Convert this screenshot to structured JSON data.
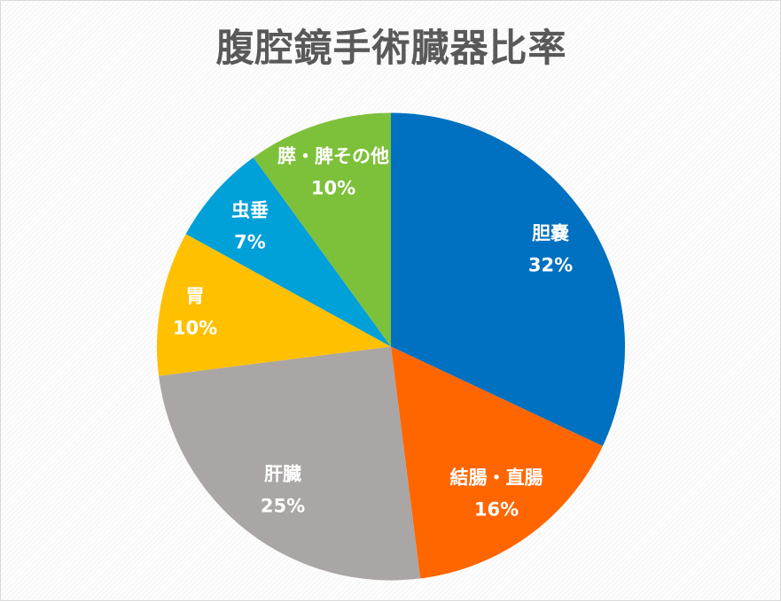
{
  "chart": {
    "title": "腹腔鏡手術臓器比率"
  },
  "chart_data": {
    "type": "pie",
    "title": "腹腔鏡手術臓器比率",
    "start_angle_deg_clockwise_from_top": 0,
    "direction": "clockwise",
    "categories": [
      "胆嚢",
      "結腸・直腸",
      "肝臓",
      "胃",
      "虫垂",
      "膵・脾その他"
    ],
    "values": [
      32,
      16,
      25,
      10,
      7,
      10
    ],
    "labels": [
      "32%",
      "16%",
      "25%",
      "10%",
      "7%",
      "10%"
    ],
    "colors": [
      "#0070C0",
      "#FF6600",
      "#A9A6A5",
      "#FFC000",
      "#00A0D8",
      "#7DC03A"
    ],
    "data_labels": "category name and percentage, inside slices",
    "legend": "none"
  },
  "slices": [
    {
      "name": "胆嚢",
      "pct": "32%"
    },
    {
      "name": "結腸・直腸",
      "pct": "16%"
    },
    {
      "name": "肝臓",
      "pct": "25%"
    },
    {
      "name": "胃",
      "pct": "10%"
    },
    {
      "name": "虫垂",
      "pct": "7%"
    },
    {
      "name": "膵・脾その他",
      "pct": "10%"
    }
  ]
}
